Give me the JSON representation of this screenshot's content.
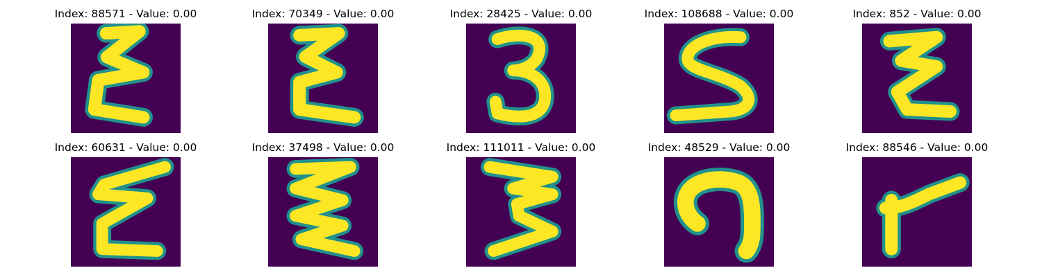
{
  "figure": {
    "panels": [
      {
        "title": "Index: 88571 - Value: 0.00",
        "glyph": "Σ"
      },
      {
        "title": "Index: 70349 - Value: 0.00",
        "glyph": "Σ"
      },
      {
        "title": "Index: 28425 - Value: 0.00",
        "glyph": "3"
      },
      {
        "title": "Index: 108688 - Value: 0.00",
        "glyph": "S"
      },
      {
        "title": "Index: 852 - Value: 0.00",
        "glyph": "Ƨ"
      },
      {
        "title": "Index: 60631 - Value: 0.00",
        "glyph": "Σ"
      },
      {
        "title": "Index: 37498 - Value: 0.00",
        "glyph": "Σ"
      },
      {
        "title": "Index: 111011 - Value: 0.00",
        "glyph": "3"
      },
      {
        "title": "Index: 48529 - Value: 0.00",
        "glyph": "ɑ"
      },
      {
        "title": "Index: 88546 - Value: 0.00",
        "glyph": "r"
      }
    ],
    "colors": {
      "background": "#440154",
      "stroke": "#fde725",
      "edge": "#21918c"
    }
  }
}
